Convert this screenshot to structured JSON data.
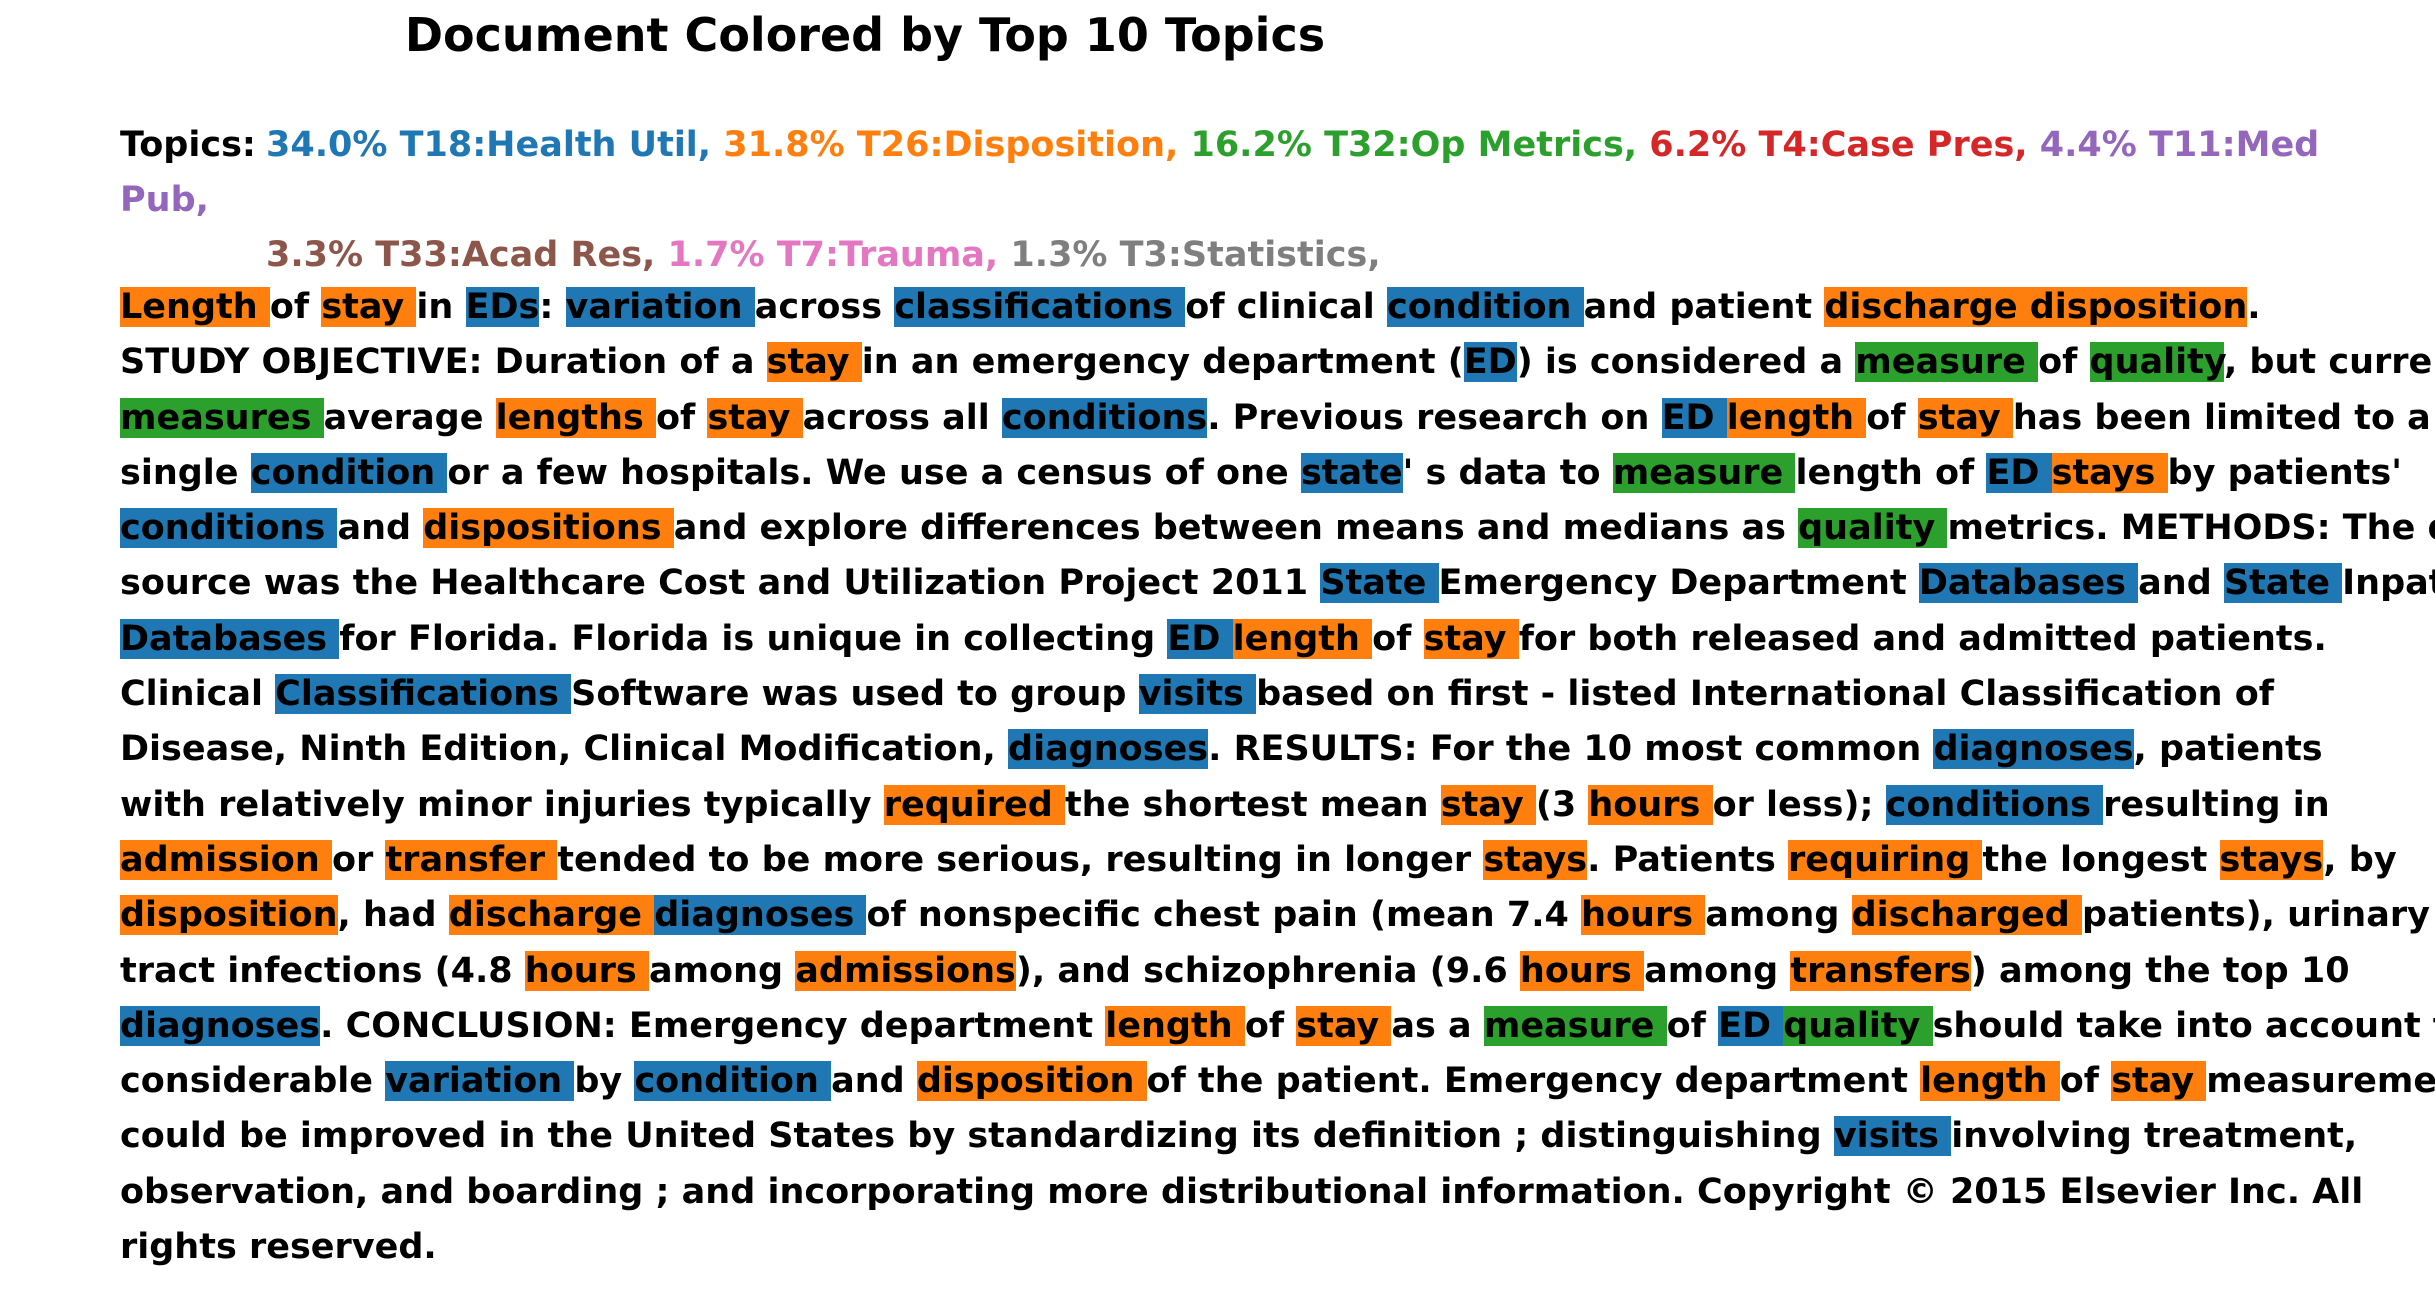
{
  "title": "Document Colored by Top 10 Topics",
  "topics_label": "Topics:",
  "topic_lines": [
    [
      {
        "text": "34.0% T18:Health Util,",
        "color": "#1f77b4"
      },
      {
        "text": "31.8% T26:Disposition,",
        "color": "#ff7f0e"
      },
      {
        "text": "16.2% T32:Op Metrics,",
        "color": "#2ca02c"
      },
      {
        "text": "6.2% T4:Case Pres,",
        "color": "#d62728"
      },
      {
        "text": "4.4% T11:Med Pub,",
        "color": "#9467bd"
      }
    ],
    [
      {
        "text": "3.3% T33:Acad Res,",
        "color": "#8c564b"
      },
      {
        "text": "1.7% T7:Trauma,",
        "color": "#e377c2"
      },
      {
        "text": "1.3% T3:Statistics,",
        "color": "#7f7f7f"
      }
    ]
  ],
  "highlight_colors": {
    "b": "#1f77b4",
    "o": "#ff7f0e",
    "g": "#2ca02c"
  },
  "lines": [
    [
      [
        "Length ",
        "o"
      ],
      [
        "of "
      ],
      [
        "stay ",
        "o"
      ],
      [
        "in "
      ],
      [
        "EDs",
        "b"
      ],
      [
        ": "
      ],
      [
        "variation ",
        "b"
      ],
      [
        "across "
      ],
      [
        "classifications ",
        "b"
      ],
      [
        "of clinical "
      ],
      [
        "condition ",
        "b"
      ],
      [
        "and patient "
      ],
      [
        "discharge disposition",
        "o"
      ],
      [
        "."
      ]
    ],
    [
      [
        "STUDY OBJECTIVE: Duration of a "
      ],
      [
        "stay ",
        "o"
      ],
      [
        "in an emergency department ("
      ],
      [
        "ED",
        "b"
      ],
      [
        ") is considered a "
      ],
      [
        "measure ",
        "g"
      ],
      [
        "of "
      ],
      [
        "quality",
        "g"
      ],
      [
        ", but current"
      ]
    ],
    [
      [
        "measures ",
        "g"
      ],
      [
        "average "
      ],
      [
        "lengths ",
        "o"
      ],
      [
        "of "
      ],
      [
        "stay ",
        "o"
      ],
      [
        "across all "
      ],
      [
        "conditions",
        "b"
      ],
      [
        ". Previous research on "
      ],
      [
        "ED ",
        "b"
      ],
      [
        "length ",
        "o"
      ],
      [
        "of "
      ],
      [
        "stay ",
        "o"
      ],
      [
        "has been limited to a"
      ]
    ],
    [
      [
        "single "
      ],
      [
        "condition ",
        "b"
      ],
      [
        "or a few hospitals. We use a census of one "
      ],
      [
        "state",
        "b"
      ],
      [
        "' s data to "
      ],
      [
        "measure ",
        "g"
      ],
      [
        "length of "
      ],
      [
        "ED ",
        "b"
      ],
      [
        "stays ",
        "o"
      ],
      [
        "by patients'"
      ]
    ],
    [
      [
        "conditions ",
        "b"
      ],
      [
        "and "
      ],
      [
        "dispositions ",
        "o"
      ],
      [
        "and explore differences between means and medians as "
      ],
      [
        "quality ",
        "g"
      ],
      [
        "metrics. METHODS: The data"
      ]
    ],
    [
      [
        "source was the Healthcare Cost and Utilization Project 2011 "
      ],
      [
        "State ",
        "b"
      ],
      [
        "Emergency Department "
      ],
      [
        "Databases ",
        "b"
      ],
      [
        "and "
      ],
      [
        "State ",
        "b"
      ],
      [
        "Inpatient"
      ]
    ],
    [
      [
        "Databases ",
        "b"
      ],
      [
        "for Florida. Florida is unique in collecting "
      ],
      [
        "ED ",
        "b"
      ],
      [
        "length ",
        "o"
      ],
      [
        "of "
      ],
      [
        "stay ",
        "o"
      ],
      [
        "for both released and admitted patients."
      ]
    ],
    [
      [
        "Clinical "
      ],
      [
        "Classifications ",
        "b"
      ],
      [
        "Software was used to group "
      ],
      [
        "visits ",
        "b"
      ],
      [
        "based on first - listed International Classification of"
      ]
    ],
    [
      [
        "Disease, Ninth Edition, Clinical Modification, "
      ],
      [
        "diagnoses",
        "b"
      ],
      [
        ". RESULTS: For the 10 most common "
      ],
      [
        "diagnoses",
        "b"
      ],
      [
        ", patients"
      ]
    ],
    [
      [
        "with relatively minor injuries typically "
      ],
      [
        "required ",
        "o"
      ],
      [
        "the shortest mean "
      ],
      [
        "stay ",
        "o"
      ],
      [
        "(3 "
      ],
      [
        "hours ",
        "o"
      ],
      [
        "or less); "
      ],
      [
        "conditions ",
        "b"
      ],
      [
        "resulting in"
      ]
    ],
    [
      [
        "admission ",
        "o"
      ],
      [
        "or "
      ],
      [
        "transfer ",
        "o"
      ],
      [
        "tended to be more serious, resulting in longer "
      ],
      [
        "stays",
        "o"
      ],
      [
        ". Patients "
      ],
      [
        "requiring ",
        "o"
      ],
      [
        "the longest "
      ],
      [
        "stays",
        "o"
      ],
      [
        ", by"
      ]
    ],
    [
      [
        "disposition",
        "o"
      ],
      [
        ", had "
      ],
      [
        "discharge ",
        "o"
      ],
      [
        "diagnoses ",
        "b"
      ],
      [
        "of nonspecific chest pain (mean 7.4 "
      ],
      [
        "hours ",
        "o"
      ],
      [
        "among "
      ],
      [
        "discharged ",
        "o"
      ],
      [
        "patients), urinary"
      ]
    ],
    [
      [
        "tract infections (4.8 "
      ],
      [
        "hours ",
        "o"
      ],
      [
        "among "
      ],
      [
        "admissions",
        "o"
      ],
      [
        "), and schizophrenia (9.6 "
      ],
      [
        "hours ",
        "o"
      ],
      [
        "among "
      ],
      [
        "transfers",
        "o"
      ],
      [
        ") among the top 10"
      ]
    ],
    [
      [
        "diagnoses",
        "b"
      ],
      [
        ". CONCLUSION: Emergency department "
      ],
      [
        "length ",
        "o"
      ],
      [
        "of "
      ],
      [
        "stay ",
        "o"
      ],
      [
        "as a "
      ],
      [
        "measure ",
        "g"
      ],
      [
        "of "
      ],
      [
        "ED ",
        "b"
      ],
      [
        "quality ",
        "g"
      ],
      [
        "should take into account the"
      ]
    ],
    [
      [
        "considerable "
      ],
      [
        "variation ",
        "b"
      ],
      [
        "by "
      ],
      [
        "condition ",
        "b"
      ],
      [
        "and "
      ],
      [
        "disposition ",
        "o"
      ],
      [
        "of the patient. Emergency department "
      ],
      [
        "length ",
        "o"
      ],
      [
        "of "
      ],
      [
        "stay ",
        "o"
      ],
      [
        "measurement"
      ]
    ],
    [
      [
        "could be improved in the United States by standardizing its definition ; distinguishing "
      ],
      [
        "visits ",
        "b"
      ],
      [
        "involving treatment,"
      ]
    ],
    [
      [
        "observation, and boarding ; and incorporating more distributional information. Copyright © 2015 Elsevier Inc. All"
      ]
    ],
    [
      [
        "rights reserved."
      ]
    ]
  ]
}
